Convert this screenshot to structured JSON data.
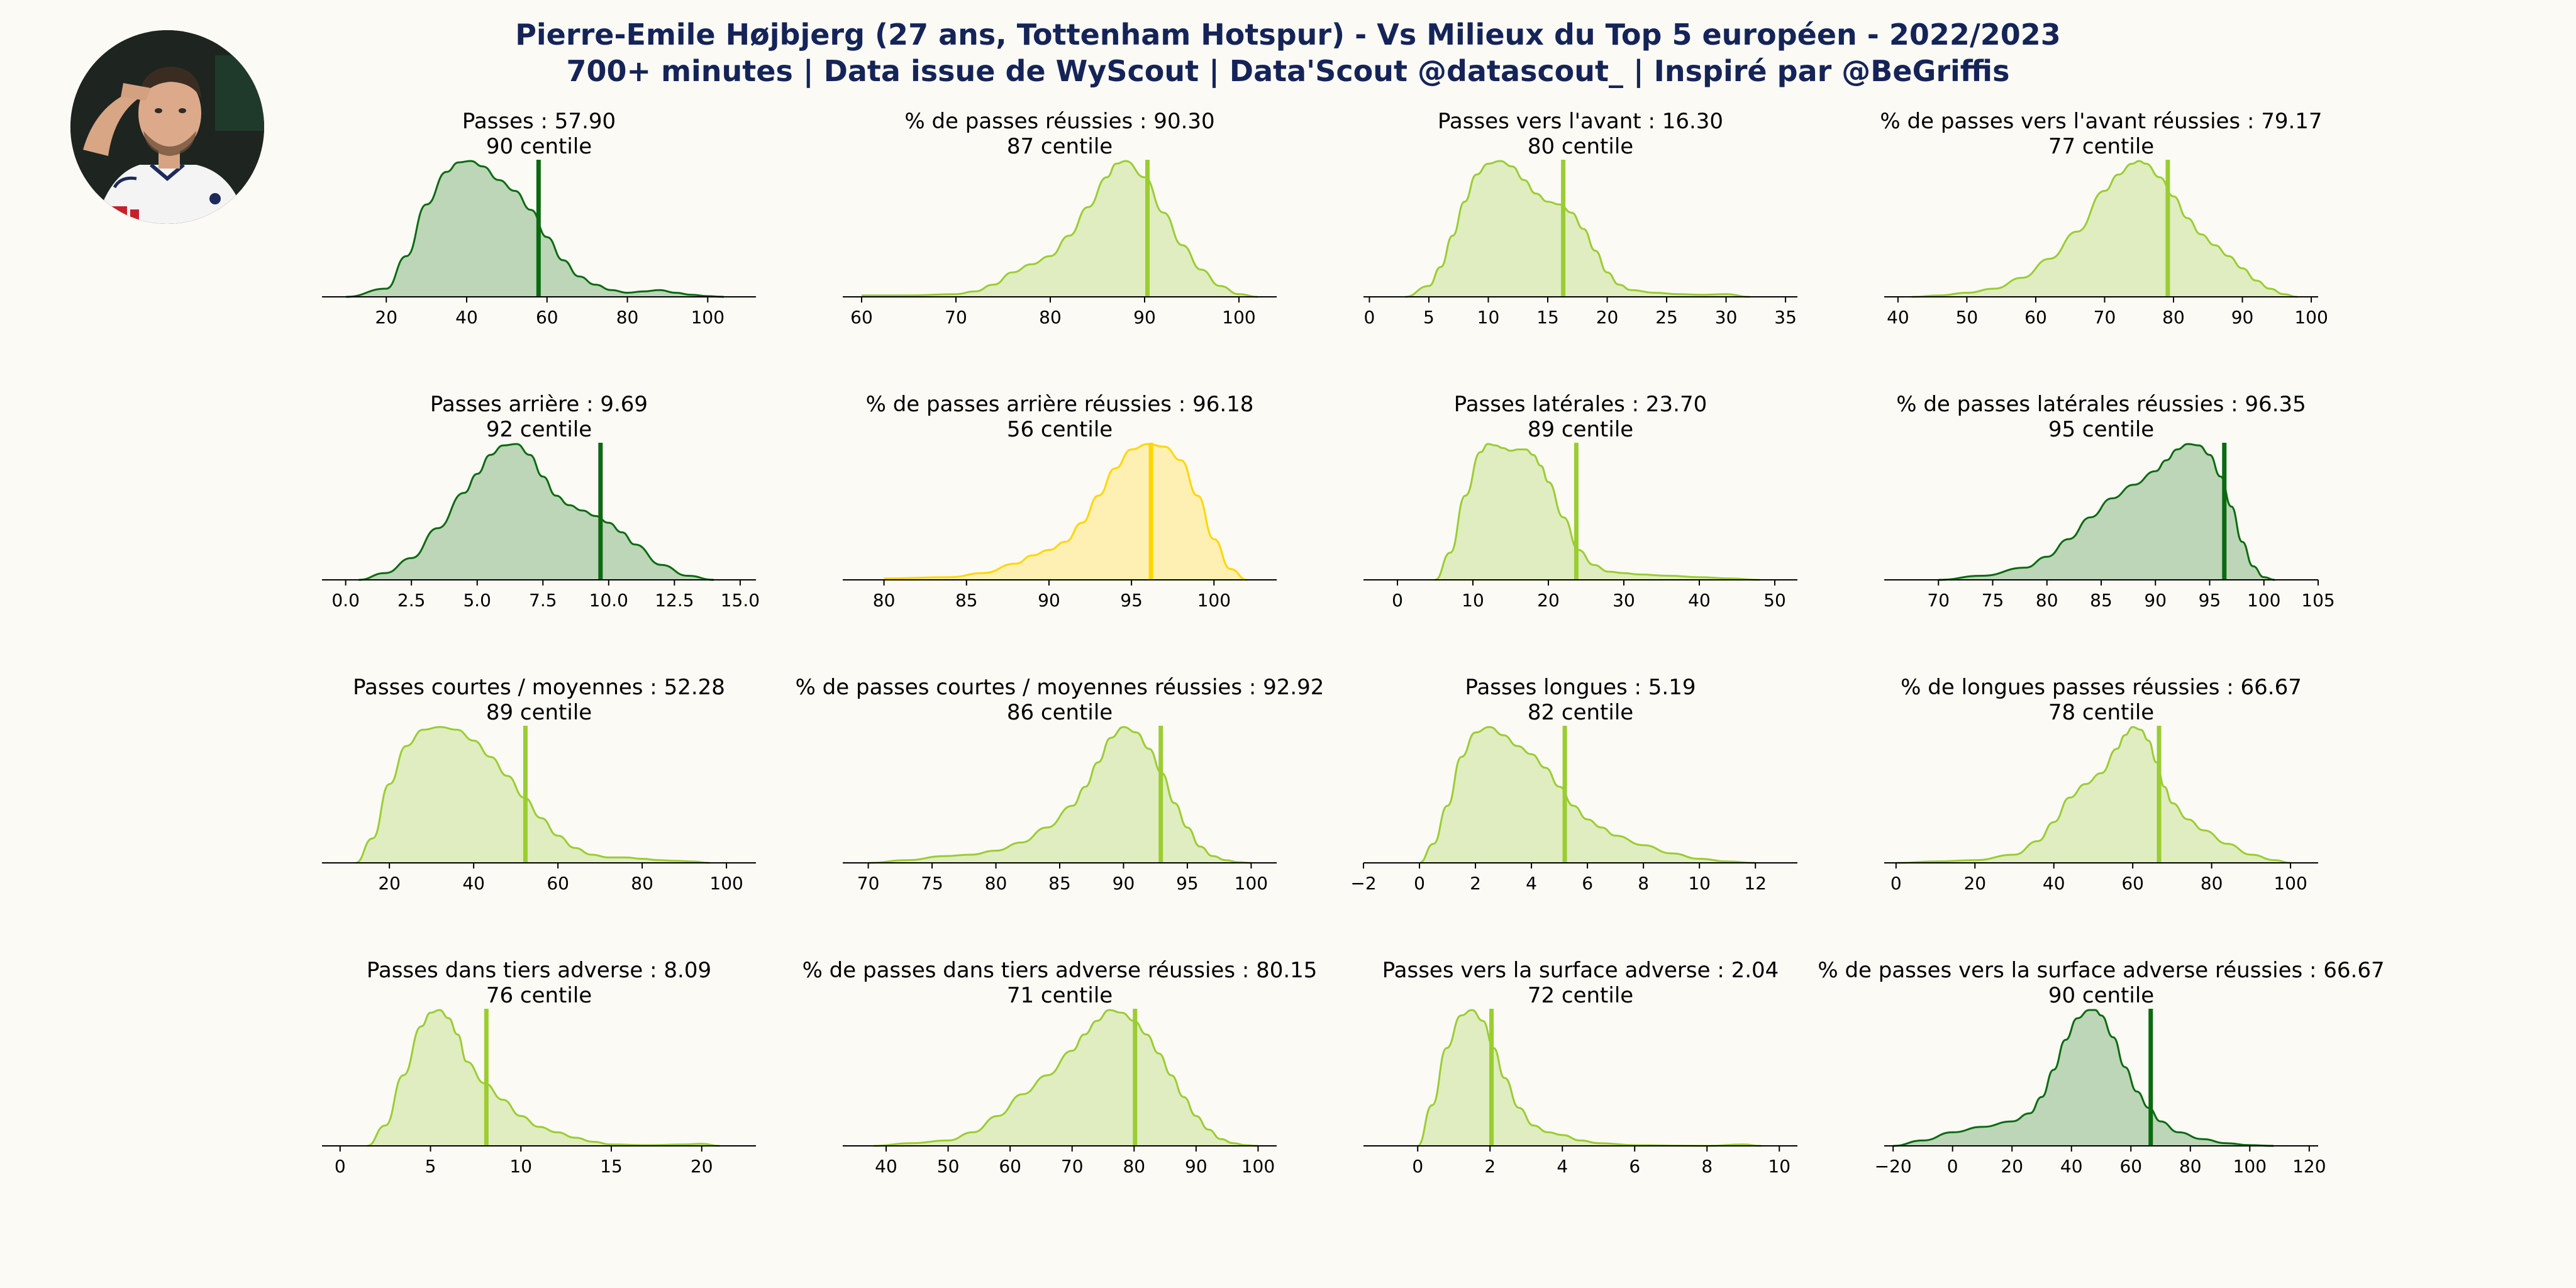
{
  "header": {
    "title_line1": "Pierre-Emile Højbjerg (27 ans, Tottenham Hotspur) - Vs Milieux du Top 5 européen - 2022/2023",
    "title_line2": "700+ minutes | Data issue de WyScout | Data'Scout @datascout_ | Inspiré par @BeGriffis"
  },
  "colors": {
    "dark_green": "#0B6A10",
    "dark_green_fill": "#BCD6B7",
    "light_green": "#9ACD32",
    "light_green_fill": "#E0EDC0",
    "gold": "#FFD700",
    "gold_fill": "#FEF0B2",
    "title": "#152458",
    "background": "#FBFAF5"
  },
  "chart_data": [
    {
      "type": "area",
      "title": "Passes : 57.90",
      "subtitle": "90 centile",
      "value": 57.9,
      "color": "dark_green",
      "xlim": [
        4,
        112
      ],
      "xticks": [
        20,
        40,
        60,
        80,
        100
      ],
      "xticklabels": [
        "20",
        "40",
        "60",
        "80",
        "100"
      ],
      "x": [
        10,
        20,
        25,
        30,
        35,
        38,
        41,
        44,
        48,
        52,
        56,
        60,
        64,
        68,
        72,
        76,
        80,
        84,
        88,
        92,
        96,
        100,
        104
      ],
      "density": [
        0.0,
        0.06,
        0.3,
        0.68,
        0.92,
        0.99,
        1.0,
        0.96,
        0.86,
        0.78,
        0.64,
        0.44,
        0.27,
        0.15,
        0.09,
        0.05,
        0.03,
        0.04,
        0.05,
        0.03,
        0.015,
        0.005,
        0.0
      ]
    },
    {
      "type": "area",
      "title": "% de passes réussies : 90.30",
      "subtitle": "87 centile",
      "value": 90.3,
      "color": "light_green",
      "xlim": [
        58,
        104
      ],
      "xticks": [
        60,
        70,
        80,
        90,
        100
      ],
      "xticklabels": [
        "60",
        "70",
        "80",
        "90",
        "100"
      ],
      "x": [
        60,
        65,
        70,
        72,
        74,
        76,
        78,
        80,
        82,
        84,
        86,
        87,
        88,
        90,
        92,
        94,
        96,
        98,
        100,
        102
      ],
      "density": [
        0.01,
        0.01,
        0.02,
        0.04,
        0.09,
        0.18,
        0.24,
        0.3,
        0.45,
        0.66,
        0.88,
        0.98,
        1.0,
        0.88,
        0.62,
        0.38,
        0.2,
        0.08,
        0.02,
        0.0
      ]
    },
    {
      "type": "area",
      "title": "Passes vers l'avant : 16.30",
      "subtitle": "80 centile",
      "value": 16.3,
      "color": "light_green",
      "xlim": [
        -0.5,
        36
      ],
      "xticks": [
        0,
        5,
        10,
        15,
        20,
        25,
        30,
        35
      ],
      "xticklabels": [
        "0",
        "5",
        "10",
        "15",
        "20",
        "25",
        "30",
        "35"
      ],
      "x": [
        3,
        5,
        6,
        7,
        8,
        9,
        10,
        11,
        12,
        13,
        14,
        15,
        16,
        17,
        18,
        19,
        20,
        21,
        22,
        24,
        26,
        28,
        30,
        32
      ],
      "density": [
        0.0,
        0.08,
        0.22,
        0.45,
        0.7,
        0.9,
        0.98,
        1.0,
        0.96,
        0.86,
        0.76,
        0.7,
        0.68,
        0.62,
        0.5,
        0.34,
        0.18,
        0.09,
        0.05,
        0.03,
        0.02,
        0.015,
        0.02,
        0.0
      ]
    },
    {
      "type": "area",
      "title": "% de passes vers l'avant réussies : 79.17",
      "subtitle": "77 centile",
      "value": 79.17,
      "color": "light_green",
      "xlim": [
        38,
        101
      ],
      "xticks": [
        40,
        50,
        60,
        70,
        80,
        90,
        100
      ],
      "xticklabels": [
        "40",
        "50",
        "60",
        "70",
        "80",
        "90",
        "100"
      ],
      "x": [
        42,
        46,
        50,
        54,
        58,
        62,
        66,
        70,
        72,
        74,
        75,
        76,
        78,
        80,
        82,
        84,
        86,
        88,
        90,
        92,
        94,
        96,
        98
      ],
      "density": [
        0.0,
        0.01,
        0.03,
        0.06,
        0.14,
        0.28,
        0.48,
        0.78,
        0.9,
        0.98,
        1.0,
        0.98,
        0.88,
        0.74,
        0.58,
        0.46,
        0.38,
        0.3,
        0.21,
        0.12,
        0.06,
        0.02,
        0.0
      ]
    },
    {
      "type": "area",
      "title": "Passes arrière : 9.69",
      "subtitle": "92 centile",
      "value": 9.69,
      "color": "dark_green",
      "xlim": [
        -0.9,
        15.6
      ],
      "xticks": [
        0,
        2.5,
        5,
        7.5,
        10,
        12.5,
        15
      ],
      "xticklabels": [
        "0.0",
        "2.5",
        "5.0",
        "7.5",
        "10.0",
        "12.5",
        "15.0"
      ],
      "x": [
        0.5,
        1.5,
        2.5,
        3.5,
        4.5,
        5,
        5.5,
        6,
        6.5,
        7,
        7.5,
        8,
        8.5,
        9,
        9.5,
        10,
        10.5,
        11,
        12,
        13,
        14
      ],
      "density": [
        0.0,
        0.05,
        0.16,
        0.38,
        0.64,
        0.78,
        0.92,
        0.99,
        1.0,
        0.92,
        0.76,
        0.62,
        0.55,
        0.51,
        0.47,
        0.42,
        0.35,
        0.26,
        0.11,
        0.03,
        0.0
      ]
    },
    {
      "type": "area",
      "title": "% de passes arrière réussies : 96.18",
      "subtitle": "56 centile",
      "value": 96.18,
      "color": "gold",
      "xlim": [
        77.5,
        103.8
      ],
      "xticks": [
        80,
        85,
        90,
        95,
        100
      ],
      "xticklabels": [
        "80",
        "85",
        "90",
        "95",
        "100"
      ],
      "x": [
        80,
        84,
        86,
        88,
        89,
        90,
        91,
        92,
        93,
        94,
        95,
        96,
        97,
        98,
        99,
        100,
        101,
        102
      ],
      "density": [
        0.01,
        0.02,
        0.05,
        0.12,
        0.18,
        0.22,
        0.28,
        0.42,
        0.62,
        0.82,
        0.96,
        1.0,
        0.98,
        0.88,
        0.62,
        0.3,
        0.08,
        0.0
      ]
    },
    {
      "type": "area",
      "title": "Passes latérales : 23.70",
      "subtitle": "89 centile",
      "value": 23.7,
      "color": "light_green",
      "xlim": [
        -4.5,
        53
      ],
      "xticks": [
        0,
        10,
        20,
        30,
        40,
        50
      ],
      "xticklabels": [
        "0",
        "10",
        "20",
        "30",
        "40",
        "50"
      ],
      "x": [
        5,
        7,
        9,
        11,
        12,
        13,
        14,
        15,
        16,
        17,
        18,
        19,
        20,
        22,
        24,
        26,
        28,
        30,
        32,
        36,
        40,
        44,
        48
      ],
      "density": [
        0.0,
        0.2,
        0.62,
        0.94,
        1.0,
        0.99,
        0.97,
        0.95,
        0.96,
        0.96,
        0.92,
        0.84,
        0.72,
        0.46,
        0.22,
        0.11,
        0.06,
        0.05,
        0.04,
        0.03,
        0.02,
        0.01,
        0.0
      ]
    },
    {
      "type": "area",
      "title": "% de passes latérales réussies : 96.35",
      "subtitle": "95 centile",
      "value": 96.35,
      "color": "dark_green",
      "xlim": [
        65,
        105
      ],
      "xticks": [
        70,
        75,
        80,
        85,
        90,
        95,
        100,
        105
      ],
      "xticklabels": [
        "70",
        "75",
        "80",
        "85",
        "90",
        "95",
        "100",
        "105"
      ],
      "x": [
        70,
        74,
        78,
        80,
        82,
        84,
        86,
        88,
        90,
        91,
        92,
        93,
        94,
        95,
        96,
        97,
        98,
        99,
        100,
        101
      ],
      "density": [
        0.0,
        0.03,
        0.09,
        0.17,
        0.3,
        0.46,
        0.6,
        0.7,
        0.8,
        0.88,
        0.96,
        1.0,
        0.99,
        0.92,
        0.76,
        0.54,
        0.28,
        0.1,
        0.02,
        0.0
      ]
    },
    {
      "type": "area",
      "title": "Passes courtes / moyennes : 52.28",
      "subtitle": "89 centile",
      "value": 52.28,
      "color": "light_green",
      "xlim": [
        4,
        107
      ],
      "xticks": [
        20,
        40,
        60,
        80,
        100
      ],
      "xticklabels": [
        "20",
        "40",
        "60",
        "80",
        "100"
      ],
      "x": [
        12,
        16,
        20,
        24,
        28,
        32,
        36,
        40,
        44,
        48,
        52,
        56,
        60,
        64,
        68,
        72,
        76,
        80,
        84,
        88,
        92,
        96
      ],
      "density": [
        0.0,
        0.18,
        0.58,
        0.86,
        0.98,
        1.0,
        0.98,
        0.9,
        0.78,
        0.64,
        0.48,
        0.33,
        0.2,
        0.11,
        0.06,
        0.04,
        0.04,
        0.03,
        0.02,
        0.015,
        0.01,
        0.0
      ]
    },
    {
      "type": "area",
      "title": "% de passes courtes / moyennes réussies : 92.92",
      "subtitle": "86 centile",
      "value": 92.92,
      "color": "light_green",
      "xlim": [
        68,
        102
      ],
      "xticks": [
        70,
        75,
        80,
        85,
        90,
        95,
        100
      ],
      "xticklabels": [
        "70",
        "75",
        "80",
        "85",
        "90",
        "95",
        "100"
      ],
      "x": [
        70,
        73,
        76,
        78,
        80,
        82,
        84,
        86,
        87,
        88,
        89,
        90,
        91,
        92,
        93,
        94,
        95,
        96,
        97,
        98,
        99,
        100
      ],
      "density": [
        0.0,
        0.02,
        0.05,
        0.06,
        0.09,
        0.15,
        0.26,
        0.42,
        0.56,
        0.74,
        0.92,
        1.0,
        0.96,
        0.84,
        0.66,
        0.44,
        0.26,
        0.12,
        0.05,
        0.02,
        0.005,
        0.0
      ]
    },
    {
      "type": "area",
      "title": "Passes longues : 5.19",
      "subtitle": "82 centile",
      "value": 5.19,
      "color": "light_green",
      "xlim": [
        -2,
        13.5
      ],
      "xticks": [
        -2,
        0,
        2,
        4,
        6,
        8,
        10,
        12
      ],
      "xticklabels": [
        "−2",
        "0",
        "2",
        "4",
        "6",
        "8",
        "10",
        "12"
      ],
      "x": [
        0,
        0.5,
        1,
        1.5,
        2,
        2.5,
        3,
        3.5,
        4,
        4.5,
        5,
        5.5,
        6,
        6.5,
        7,
        8,
        9,
        10,
        11,
        12
      ],
      "density": [
        0.0,
        0.14,
        0.42,
        0.78,
        0.96,
        1.0,
        0.94,
        0.86,
        0.8,
        0.7,
        0.56,
        0.42,
        0.32,
        0.26,
        0.2,
        0.13,
        0.07,
        0.03,
        0.01,
        0.0
      ]
    },
    {
      "type": "area",
      "title": "% de longues passes réussies : 66.67",
      "subtitle": "78 centile",
      "value": 66.67,
      "color": "light_green",
      "xlim": [
        -3,
        107
      ],
      "xticks": [
        0,
        20,
        40,
        60,
        80,
        100
      ],
      "xticklabels": [
        "0",
        "20",
        "40",
        "60",
        "80",
        "100"
      ],
      "x": [
        0,
        10,
        20,
        30,
        36,
        40,
        44,
        48,
        52,
        56,
        58,
        60,
        62,
        64,
        66,
        68,
        70,
        74,
        78,
        84,
        90,
        96,
        100
      ],
      "density": [
        0.0,
        0.01,
        0.02,
        0.06,
        0.16,
        0.3,
        0.48,
        0.58,
        0.66,
        0.84,
        0.94,
        1.0,
        0.98,
        0.9,
        0.74,
        0.56,
        0.44,
        0.32,
        0.24,
        0.14,
        0.06,
        0.02,
        0.0
      ]
    },
    {
      "type": "area",
      "title": "Passes dans tiers adverse : 8.09",
      "subtitle": "76 centile",
      "value": 8.09,
      "color": "light_green",
      "xlim": [
        -1,
        23
      ],
      "xticks": [
        0,
        5,
        10,
        15,
        20
      ],
      "xticklabels": [
        "0",
        "5",
        "10",
        "15",
        "20"
      ],
      "x": [
        1.5,
        2.5,
        3.5,
        4.5,
        5,
        5.5,
        6,
        6.5,
        7,
        8,
        9,
        10,
        11,
        12,
        13,
        14,
        15,
        17,
        19,
        20,
        21
      ],
      "density": [
        0.0,
        0.15,
        0.52,
        0.88,
        0.98,
        1.0,
        0.94,
        0.82,
        0.62,
        0.46,
        0.34,
        0.22,
        0.14,
        0.1,
        0.06,
        0.03,
        0.01,
        0.005,
        0.01,
        0.015,
        0.0
      ]
    },
    {
      "type": "area",
      "title": "% de passes dans tiers adverse réussies : 80.15",
      "subtitle": "71 centile",
      "value": 80.15,
      "color": "light_green",
      "xlim": [
        33,
        103
      ],
      "xticks": [
        40,
        50,
        60,
        70,
        80,
        90,
        100
      ],
      "xticklabels": [
        "40",
        "50",
        "60",
        "70",
        "80",
        "90",
        "100"
      ],
      "x": [
        38,
        44,
        50,
        54,
        58,
        62,
        66,
        70,
        72,
        74,
        76,
        78,
        80,
        82,
        84,
        86,
        88,
        90,
        92,
        94,
        96,
        98,
        100
      ],
      "density": [
        0.0,
        0.02,
        0.04,
        0.1,
        0.22,
        0.38,
        0.52,
        0.7,
        0.82,
        0.92,
        1.0,
        0.98,
        0.92,
        0.82,
        0.68,
        0.52,
        0.36,
        0.22,
        0.12,
        0.05,
        0.02,
        0.005,
        0.0
      ]
    },
    {
      "type": "area",
      "title": "Passes vers la surface adverse : 2.04",
      "subtitle": "72 centile",
      "value": 2.04,
      "color": "light_green",
      "xlim": [
        -1.5,
        10.5
      ],
      "xticks": [
        0,
        2,
        4,
        6,
        8,
        10
      ],
      "xticklabels": [
        "0",
        "2",
        "4",
        "6",
        "8",
        "10"
      ],
      "x": [
        0,
        0.4,
        0.8,
        1.2,
        1.5,
        1.8,
        2.1,
        2.4,
        2.8,
        3.2,
        3.6,
        4,
        4.5,
        5,
        6,
        8,
        9,
        9.5
      ],
      "density": [
        0.0,
        0.3,
        0.72,
        0.96,
        1.0,
        0.92,
        0.72,
        0.5,
        0.28,
        0.15,
        0.1,
        0.08,
        0.04,
        0.02,
        0.005,
        0.0,
        0.01,
        0.0
      ]
    },
    {
      "type": "area",
      "title": "% de passes vers la surface adverse réussies : 66.67",
      "subtitle": "90 centile",
      "value": 66.67,
      "color": "dark_green",
      "xlim": [
        -23,
        123
      ],
      "xticks": [
        -20,
        0,
        20,
        40,
        60,
        80,
        100,
        120
      ],
      "xticklabels": [
        "−20",
        "0",
        "20",
        "40",
        "60",
        "80",
        "100",
        "120"
      ],
      "x": [
        -20,
        -10,
        0,
        10,
        20,
        26,
        30,
        34,
        38,
        42,
        46,
        48,
        50,
        54,
        58,
        62,
        66,
        70,
        76,
        84,
        92,
        100,
        108
      ],
      "density": [
        0.0,
        0.04,
        0.1,
        0.14,
        0.18,
        0.24,
        0.36,
        0.56,
        0.78,
        0.94,
        1.0,
        1.0,
        0.96,
        0.8,
        0.58,
        0.4,
        0.28,
        0.18,
        0.1,
        0.05,
        0.02,
        0.005,
        0.0
      ]
    }
  ]
}
